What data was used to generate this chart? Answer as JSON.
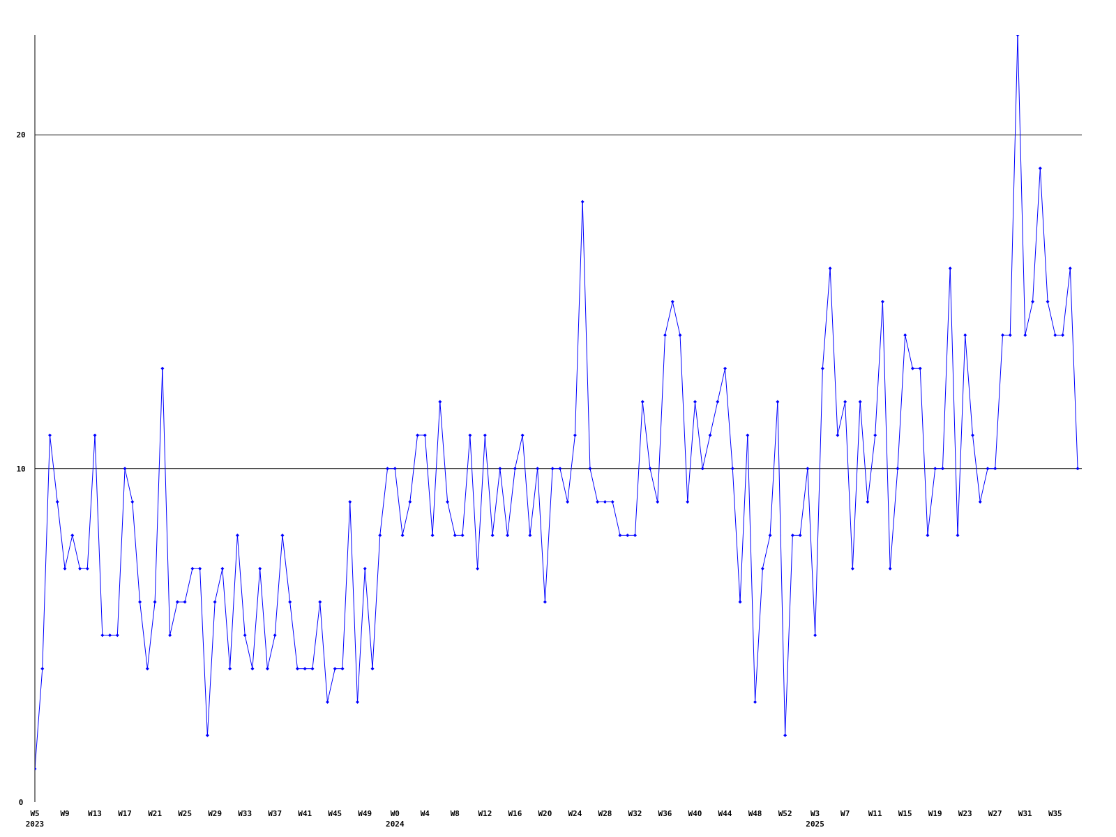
{
  "chart_data": {
    "type": "line",
    "categories": [
      "W5\n2023",
      null,
      null,
      null,
      "W9",
      null,
      null,
      null,
      "W13",
      null,
      null,
      null,
      "W17",
      null,
      null,
      null,
      "W21",
      null,
      null,
      null,
      "W25",
      null,
      null,
      null,
      "W29",
      null,
      null,
      null,
      "W33",
      null,
      null,
      null,
      "W37",
      null,
      null,
      null,
      "W41",
      null,
      null,
      null,
      "W45",
      null,
      null,
      null,
      "W49",
      null,
      null,
      null,
      "W0\n2024",
      null,
      null,
      null,
      "W4",
      null,
      null,
      null,
      "W8",
      null,
      null,
      null,
      "W12",
      null,
      null,
      null,
      "W16",
      null,
      null,
      null,
      "W20",
      null,
      null,
      null,
      "W24",
      null,
      null,
      null,
      "W28",
      null,
      null,
      null,
      "W32",
      null,
      null,
      null,
      "W36",
      null,
      null,
      null,
      "W40",
      null,
      null,
      null,
      "W44",
      null,
      null,
      null,
      "W48",
      null,
      null,
      null,
      "W52",
      null,
      null,
      null,
      "W3\n2025",
      null,
      null,
      null,
      "W7",
      null,
      null,
      null,
      "W11",
      null,
      null,
      null,
      "W15",
      null,
      null,
      null,
      "W19",
      null,
      null,
      null,
      "W23",
      null,
      null,
      null,
      "W27",
      null,
      null,
      null,
      "W31",
      null,
      null,
      null,
      "W35",
      null,
      null,
      null
    ],
    "series": [
      {
        "color": "#0000ff",
        "values": [
          1,
          4,
          11,
          9,
          7,
          8,
          7,
          7,
          11,
          5,
          5,
          5,
          10,
          9,
          6,
          4,
          6,
          13,
          5,
          6,
          6,
          7,
          7,
          2,
          6,
          7,
          4,
          8,
          5,
          4,
          7,
          4,
          5,
          8,
          6,
          4,
          4,
          4,
          6,
          3,
          4,
          4,
          9,
          3,
          7,
          4,
          8,
          10,
          10,
          8,
          9,
          11,
          11,
          8,
          12,
          9,
          8,
          8,
          11,
          7,
          11,
          8,
          10,
          8,
          10,
          11,
          8,
          10,
          6,
          10,
          10,
          9,
          11,
          18,
          10,
          9,
          9,
          9,
          8,
          8,
          8,
          12,
          10,
          9,
          14,
          15,
          14,
          9,
          12,
          10,
          11,
          12,
          13,
          10,
          6,
          11,
          3,
          7,
          8,
          12,
          2,
          8,
          8,
          10,
          5,
          13,
          16,
          11,
          12,
          7,
          12,
          9,
          11,
          15,
          7,
          10,
          14,
          13,
          13,
          8,
          10,
          10,
          16,
          8,
          14,
          11,
          9,
          10,
          10,
          14,
          14,
          23,
          14,
          15,
          19,
          15,
          14,
          14,
          16,
          10
        ]
      }
    ],
    "ylim": [
      0,
      23
    ],
    "yticks": [
      0,
      10,
      20
    ],
    "grid": "y",
    "legend": false,
    "marker": "diamond",
    "line_style": "solid"
  }
}
